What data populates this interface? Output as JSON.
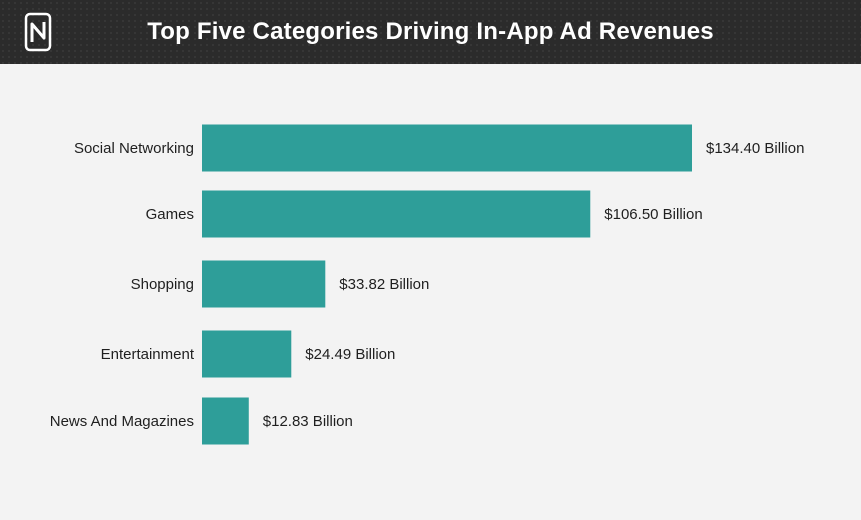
{
  "header": {
    "title": "Top Five Categories Driving In-App Ad Revenues",
    "logo_icon": "brand-logo-icon",
    "background": "#2b2b2b"
  },
  "chart_data": {
    "type": "bar",
    "orientation": "horizontal",
    "title": "Top Five Categories Driving In-App Ad Revenues",
    "xlabel": "",
    "ylabel": "",
    "grid": false,
    "legend": "none",
    "color": "#2e9e99",
    "categories": [
      "Social Networking",
      "Games",
      "Shopping",
      "Entertainment",
      "News And Magazines"
    ],
    "values": [
      134.4,
      106.5,
      33.82,
      24.49,
      12.83
    ],
    "labels": [
      "$134.40 Billion",
      "$106.50 Billion",
      "$33.82 Billion",
      "$24.49 Billion",
      "$12.83 Billion"
    ],
    "xlim": [
      0,
      134.4
    ]
  }
}
